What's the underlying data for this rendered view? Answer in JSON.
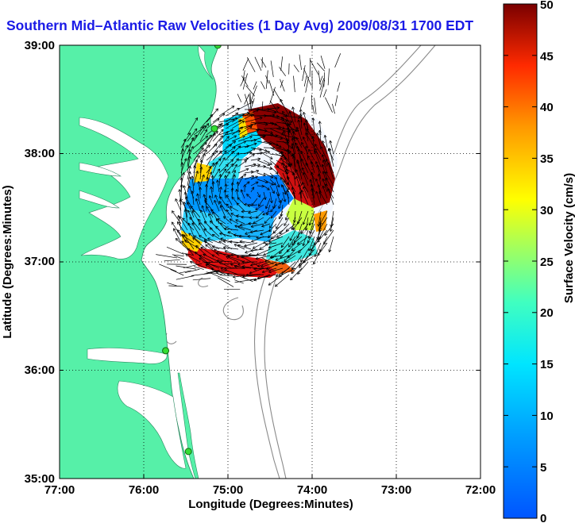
{
  "title": "Southern Mid–Atlantic Raw Velocities (1 Day Avg) 2009/08/31 1700 EDT",
  "map": {
    "xlabel": "Longitude (Degrees:Minutes)",
    "ylabel": "Latitude (Degrees:Minutes)",
    "lon_range": [
      -77,
      -72
    ],
    "lat_range": [
      35,
      39
    ],
    "lon_ticks": [
      "77:00",
      "76:00",
      "75:00",
      "74:00",
      "73:00",
      "72:00"
    ],
    "lat_ticks": [
      "35:00",
      "36:00",
      "37:00",
      "38:00",
      "39:00"
    ],
    "land_color": "#56f0a8",
    "grid": "dotted"
  },
  "colorbar": {
    "label": "Surface Velocity (cm/s)",
    "range": [
      0,
      50
    ],
    "ticks": [
      "0",
      "5",
      "10",
      "15",
      "20",
      "25",
      "30",
      "35",
      "40",
      "45",
      "50"
    ],
    "colormap": "jet"
  },
  "stations": [
    {
      "lon": -75.12,
      "lat": 39.0
    },
    {
      "lon": -75.16,
      "lat": 38.23
    },
    {
      "lon": -75.74,
      "lat": 36.18
    },
    {
      "lon": -75.47,
      "lat": 35.25
    }
  ]
}
